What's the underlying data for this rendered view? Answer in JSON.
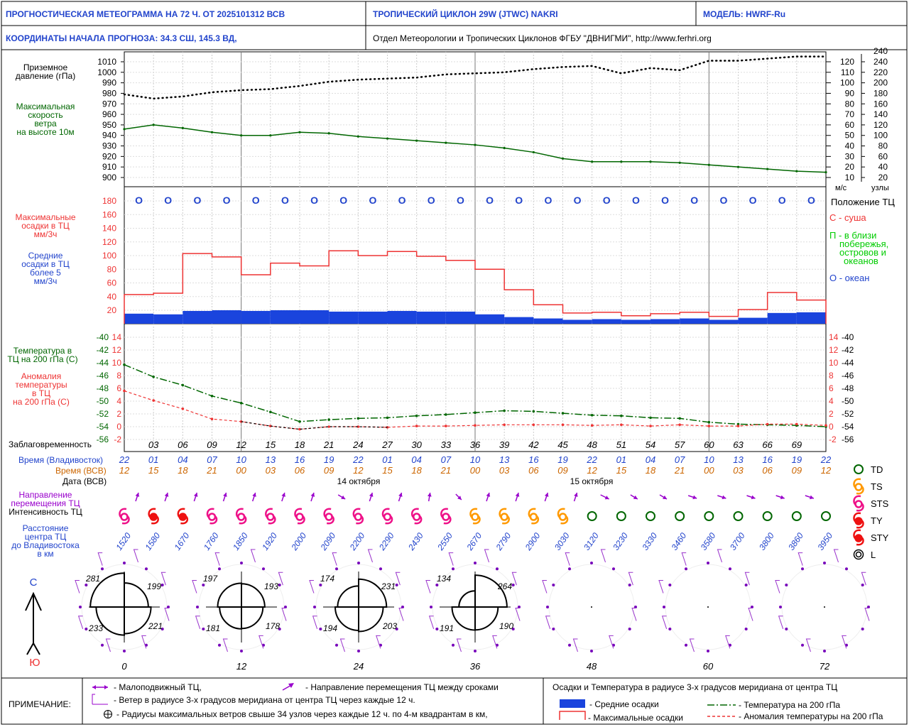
{
  "header": {
    "title": "ПРОГНОСТИЧЕСКАЯ МЕТЕОГРАММА НА 72 Ч. ОТ 2025101312 ВСВ",
    "cyclone": "ТРОПИЧЕСКИЙ ЦИКЛОН  29W  (JTWC)   NAKRI",
    "model": "МОДЕЛЬ:   HWRF-Ru",
    "coords": "КООРДИНАТЫ НАЧАЛА ПРОГНОЗА:  34.3  СШ,   145.3  ВД,",
    "org": "Отдел Метеорологии и Тропических Циклонов ФГБУ \"ДВНИГМИ\",  http://www.ferhri.org"
  },
  "labels": {
    "pressure": [
      "Приземное",
      "давление (гПа)"
    ],
    "wind": [
      "Максимальная",
      "скорость",
      "ветра",
      "на высоте 10м"
    ],
    "ms": "м/с",
    "knots": "узлы",
    "maxprec": [
      "Максимальные",
      "осадки в ТЦ",
      "мм/3ч"
    ],
    "avgprec": [
      "Средние",
      "осадки в ТЦ",
      "более 5",
      "мм/3ч"
    ],
    "position_title": "Положение ТЦ",
    "pos_c": "С - суша",
    "pos_p": [
      "П - в близи",
      "побережья,",
      "островов и",
      "океанов"
    ],
    "pos_o": "О - океан",
    "t200": [
      "Температура в",
      "ТЦ на 200 гПа (С)"
    ],
    "anom": [
      "Аномалия",
      "температуры",
      "в ТЦ",
      "на 200 гПа (С)"
    ],
    "lead": "Заблаговременность",
    "vlad": "Время (Владивосток)",
    "utc": "Время (ВСВ)",
    "date": "Дата (ВСВ)",
    "dir": "Направление",
    "dir2": "перемещения ТЦ",
    "intensity": "Интенсивность ТЦ",
    "dist": [
      "Расстояние",
      "центра ТЦ",
      "до Владивостока",
      "в км"
    ],
    "date1": "14 октября",
    "date2": "15 октября",
    "north": "С",
    "south": "Ю"
  },
  "legend_types": [
    "TD",
    "TS",
    "STS",
    "TY",
    "STY",
    "L"
  ],
  "notes": {
    "title": "ПРИМЕЧАНИЕ:",
    "stationary": "- Малоподвижный ТЦ,",
    "direction": "- Направление перемещения ТЦ между сроками",
    "wind": "- Ветер в радиусе 3-х градусов меридиана от центра ТЦ через каждые 12 ч.",
    "radii": "- Радиусы максимальных ветров свыше 34 узлов через каждые 12 ч. по 4-м квадрантам в км,",
    "prec_title": "Осадки и Температура в радиусе 3-х градусов меридиана от центра ТЦ",
    "avg": "- Средние осадки",
    "max": "- Максимальные осадки",
    "t200": "- Температура на 200 гПа",
    "anom": "- Аномалия температуры на 200 гПа"
  },
  "colors": {
    "blue": "#2244cc",
    "green": "#006600",
    "red": "#ee3333",
    "purple": "#9900cc",
    "orange": "#cc6600",
    "magenta": "#ee1188",
    "tsorange": "#ff9900",
    "tdgreen": "#006600"
  },
  "chart_data": {
    "type": "line",
    "lead_hours": [
      0,
      3,
      6,
      9,
      12,
      15,
      18,
      21,
      24,
      27,
      30,
      33,
      36,
      39,
      42,
      45,
      48,
      51,
      54,
      57,
      60,
      63,
      66,
      69,
      72
    ],
    "time_vlad": [
      "22",
      "01",
      "04",
      "07",
      "10",
      "13",
      "16",
      "19",
      "22",
      "01",
      "04",
      "07",
      "10",
      "13",
      "16",
      "19",
      "22",
      "01",
      "04",
      "07",
      "10",
      "13",
      "16",
      "19",
      "22"
    ],
    "time_utc": [
      "12",
      "15",
      "18",
      "21",
      "00",
      "03",
      "06",
      "09",
      "12",
      "15",
      "18",
      "21",
      "00",
      "03",
      "06",
      "09",
      "12",
      "15",
      "18",
      "21",
      "00",
      "03",
      "06",
      "09",
      "12"
    ],
    "pressure_hpa": {
      "ticks": [
        1010,
        1000,
        990,
        980,
        970,
        960,
        950,
        940,
        930,
        920,
        910,
        900
      ],
      "values": [
        979,
        975,
        977,
        981,
        983,
        984,
        987,
        991,
        993,
        994,
        995,
        998,
        999,
        1000,
        1003,
        1005,
        1006,
        999,
        1004,
        1002,
        1011,
        1011,
        1013,
        1015,
        1015
      ]
    },
    "max_wind": {
      "ms_ticks": [
        120,
        110,
        100,
        90,
        80,
        70,
        60,
        50,
        40,
        30,
        20,
        10
      ],
      "knots_ticks": [
        240,
        220,
        200,
        180,
        160,
        140,
        120,
        100,
        80,
        60,
        40,
        20
      ],
      "values_ms": [
        56,
        60,
        57,
        53,
        50,
        50,
        53,
        52,
        49,
        47,
        45,
        43,
        41,
        38,
        34,
        28,
        25,
        25,
        25,
        24,
        22,
        20,
        18,
        16,
        15
      ]
    },
    "position": [
      "О",
      "О",
      "О",
      "О",
      "О",
      "О",
      "О",
      "О",
      "О",
      "О",
      "О",
      "О",
      "О",
      "О",
      "О",
      "О",
      "О",
      "О",
      "О",
      "О",
      "О",
      "О",
      "О",
      "О"
    ],
    "precip": {
      "ticks": [
        180,
        160,
        140,
        120,
        100,
        80,
        60,
        40,
        20
      ],
      "max": [
        43,
        45,
        103,
        98,
        72,
        89,
        85,
        107,
        100,
        106,
        99,
        93,
        80,
        50,
        28,
        16,
        17,
        12,
        15,
        17,
        11,
        21,
        46,
        35
      ],
      "avg": [
        15,
        14,
        19,
        20,
        19,
        20,
        20,
        18,
        18,
        19,
        18,
        18,
        14,
        10,
        8,
        6,
        7,
        6,
        7,
        8,
        6,
        9,
        16,
        17
      ]
    },
    "temp_200hpa": {
      "ticks": [
        -40,
        -42,
        -44,
        -46,
        -48,
        -50,
        -52,
        -54,
        -56
      ],
      "values": [
        -44.3,
        -46.2,
        -47.5,
        -49.2,
        -50.3,
        -51.7,
        -53.2,
        -52.9,
        -52.7,
        -52.6,
        -52.3,
        -52.1,
        -51.8,
        -51.5,
        -51.6,
        -51.9,
        -52.2,
        -52.3,
        -52.6,
        -52.7,
        -53.3,
        -53.6,
        -53.7,
        -53.8,
        -54.0
      ]
    },
    "anomaly_200hpa": {
      "ticks": [
        14,
        12,
        10,
        8,
        6,
        4,
        2,
        0,
        -2
      ],
      "values": [
        5.6,
        4.1,
        2.8,
        1.2,
        0.8,
        0.1,
        -0.4,
        0,
        0,
        -0.1,
        0.1,
        0.1,
        0.2,
        0.3,
        0.3,
        0.3,
        0.2,
        0.3,
        0.1,
        0.3,
        0.1,
        0.1,
        0.4,
        0.4,
        0.2
      ]
    },
    "intensity": [
      "STS",
      "TY",
      "TY",
      "STS",
      "STS",
      "STS",
      "STS",
      "STS",
      "STS",
      "STS",
      "STS",
      "STS",
      "TS",
      "TS",
      "TS",
      "TS",
      "TD",
      "TD",
      "TD",
      "TD",
      "TD",
      "TD",
      "TD",
      "TD",
      "TD"
    ],
    "distance_km": [
      "1520",
      "1580",
      "1670",
      "1760",
      "1850",
      "1920",
      "2000",
      "2090",
      "2200",
      "2290",
      "2430",
      "2550",
      "2670",
      "2790",
      "2900",
      "3030",
      "3120",
      "3230",
      "3330",
      "3460",
      "3580",
      "3700",
      "3800",
      "3860",
      "3950"
    ],
    "radii_hours": [
      "0",
      "12",
      "24",
      "36",
      "48",
      "60",
      "72"
    ],
    "radii_km": [
      [
        "281",
        "199",
        "221",
        "233"
      ],
      [
        "197",
        "193",
        "178",
        "181"
      ],
      [
        "174",
        "231",
        "203",
        "194"
      ],
      [
        "134",
        "264",
        "190",
        "191"
      ],
      [
        "",
        "",
        "",
        ""
      ],
      [
        "",
        "",
        "",
        ""
      ],
      [
        "",
        "",
        "",
        ""
      ]
    ]
  }
}
